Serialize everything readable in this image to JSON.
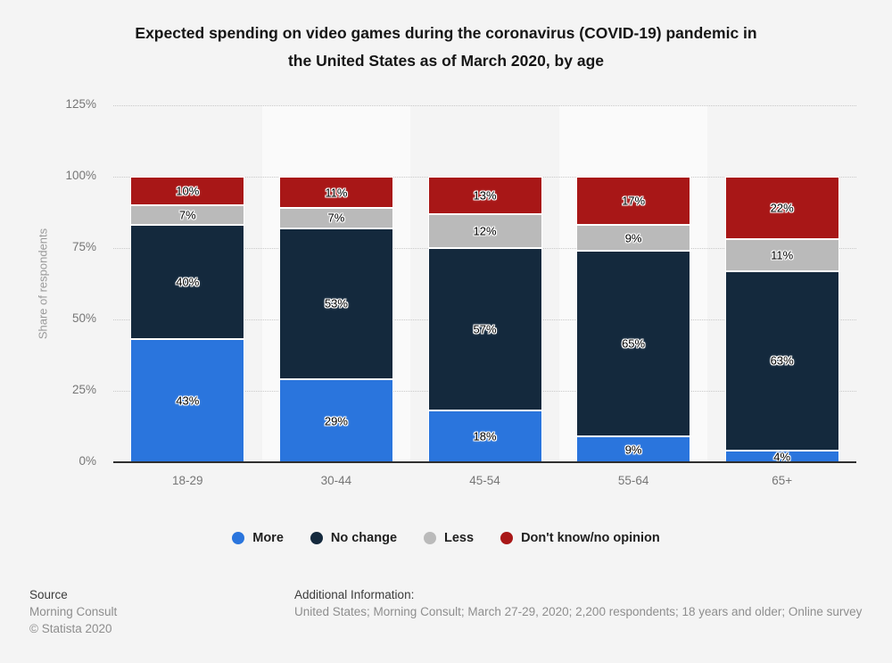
{
  "title_lines": [
    "Expected spending on video games during the coronavirus (COVID-19) pandemic in",
    "the United States as of March 2020, by age"
  ],
  "chart_data": {
    "type": "bar",
    "stacked": true,
    "title": "Expected spending on video games during the coronavirus (COVID-19) pandemic in the United States as of March 2020, by age",
    "ylabel": "Share of respondents",
    "xlabel": "",
    "categories": [
      "18-29",
      "30-44",
      "45-54",
      "55-64",
      "65+"
    ],
    "series": [
      {
        "name": "More",
        "color": "#2a75dd",
        "values": [
          43,
          29,
          18,
          9,
          4
        ]
      },
      {
        "name": "No change",
        "color": "#14293d",
        "values": [
          40,
          53,
          57,
          65,
          63
        ]
      },
      {
        "name": "Less",
        "color": "#bababa",
        "values": [
          7,
          7,
          12,
          9,
          11
        ]
      },
      {
        "name": "Don't know/no opinion",
        "color": "#a81717",
        "values": [
          10,
          11,
          13,
          17,
          22
        ]
      }
    ],
    "value_suffix": "%",
    "ylim": [
      0,
      125
    ],
    "yticks": [
      0,
      25,
      50,
      75,
      100,
      125
    ],
    "ytick_labels": [
      "0%",
      "25%",
      "50%",
      "75%",
      "100%",
      "125%"
    ],
    "grid": "horizontal-dotted",
    "legend_position": "bottom",
    "band_alt_color": "#fafafa"
  },
  "footer": {
    "source_label": "Source",
    "source_lines": [
      "Morning Consult",
      "© Statista 2020"
    ],
    "additional_label": "Additional Information:",
    "additional_text": "United States; Morning Consult; March 27-29, 2020; 2,200 respondents; 18 years and older; Online survey"
  }
}
